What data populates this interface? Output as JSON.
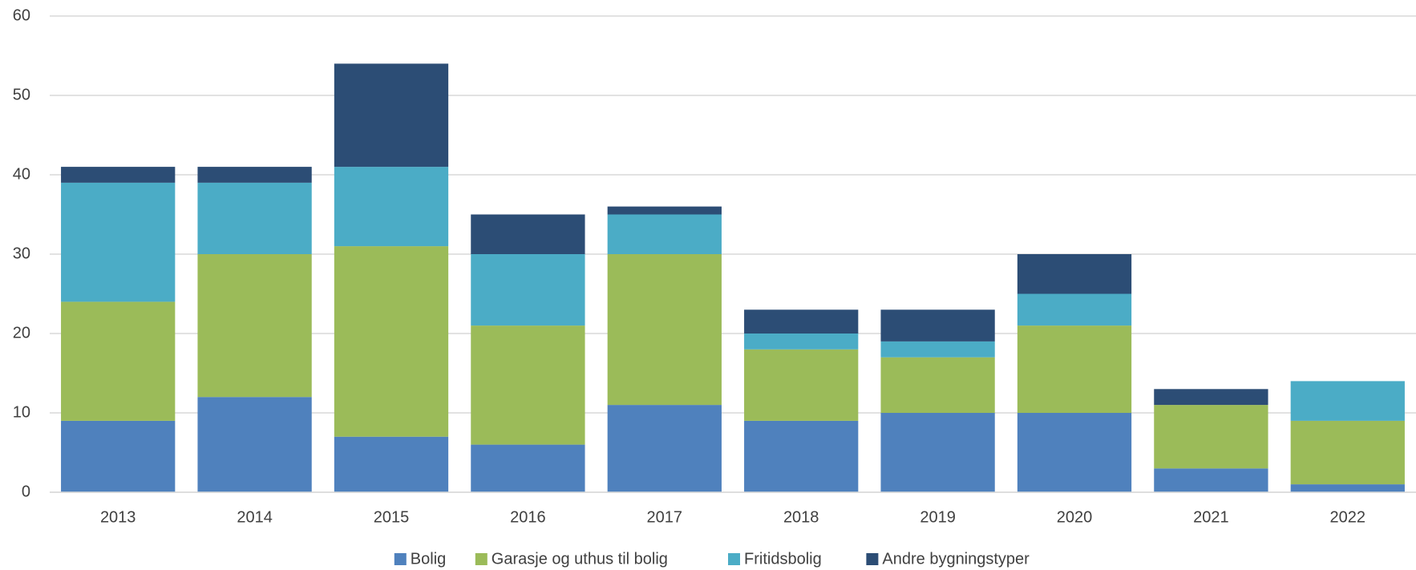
{
  "chart_data": {
    "type": "stacked_bar",
    "categories": [
      "2013",
      "2014",
      "2015",
      "2016",
      "2017",
      "2018",
      "2019",
      "2020",
      "2021",
      "2022"
    ],
    "series": [
      {
        "name": "Bolig",
        "color": "#4f81bd",
        "values": [
          9,
          12,
          7,
          6,
          11,
          9,
          10,
          10,
          3,
          1
        ]
      },
      {
        "name": "Garasje og uthus til bolig",
        "color": "#9bbb59",
        "values": [
          15,
          18,
          24,
          15,
          19,
          9,
          7,
          11,
          8,
          8
        ]
      },
      {
        "name": "Fritidsbolig",
        "color": "#4bacc6",
        "values": [
          15,
          9,
          10,
          9,
          5,
          2,
          2,
          4,
          0,
          5
        ]
      },
      {
        "name": "Andre bygningstyper",
        "color": "#2c4d75",
        "values": [
          2,
          2,
          13,
          5,
          1,
          3,
          4,
          5,
          2,
          0
        ]
      }
    ],
    "ylim": [
      0,
      60
    ],
    "yticks": [
      0,
      10,
      20,
      30,
      40,
      50,
      60
    ],
    "grid": true,
    "legend": "bottom"
  }
}
